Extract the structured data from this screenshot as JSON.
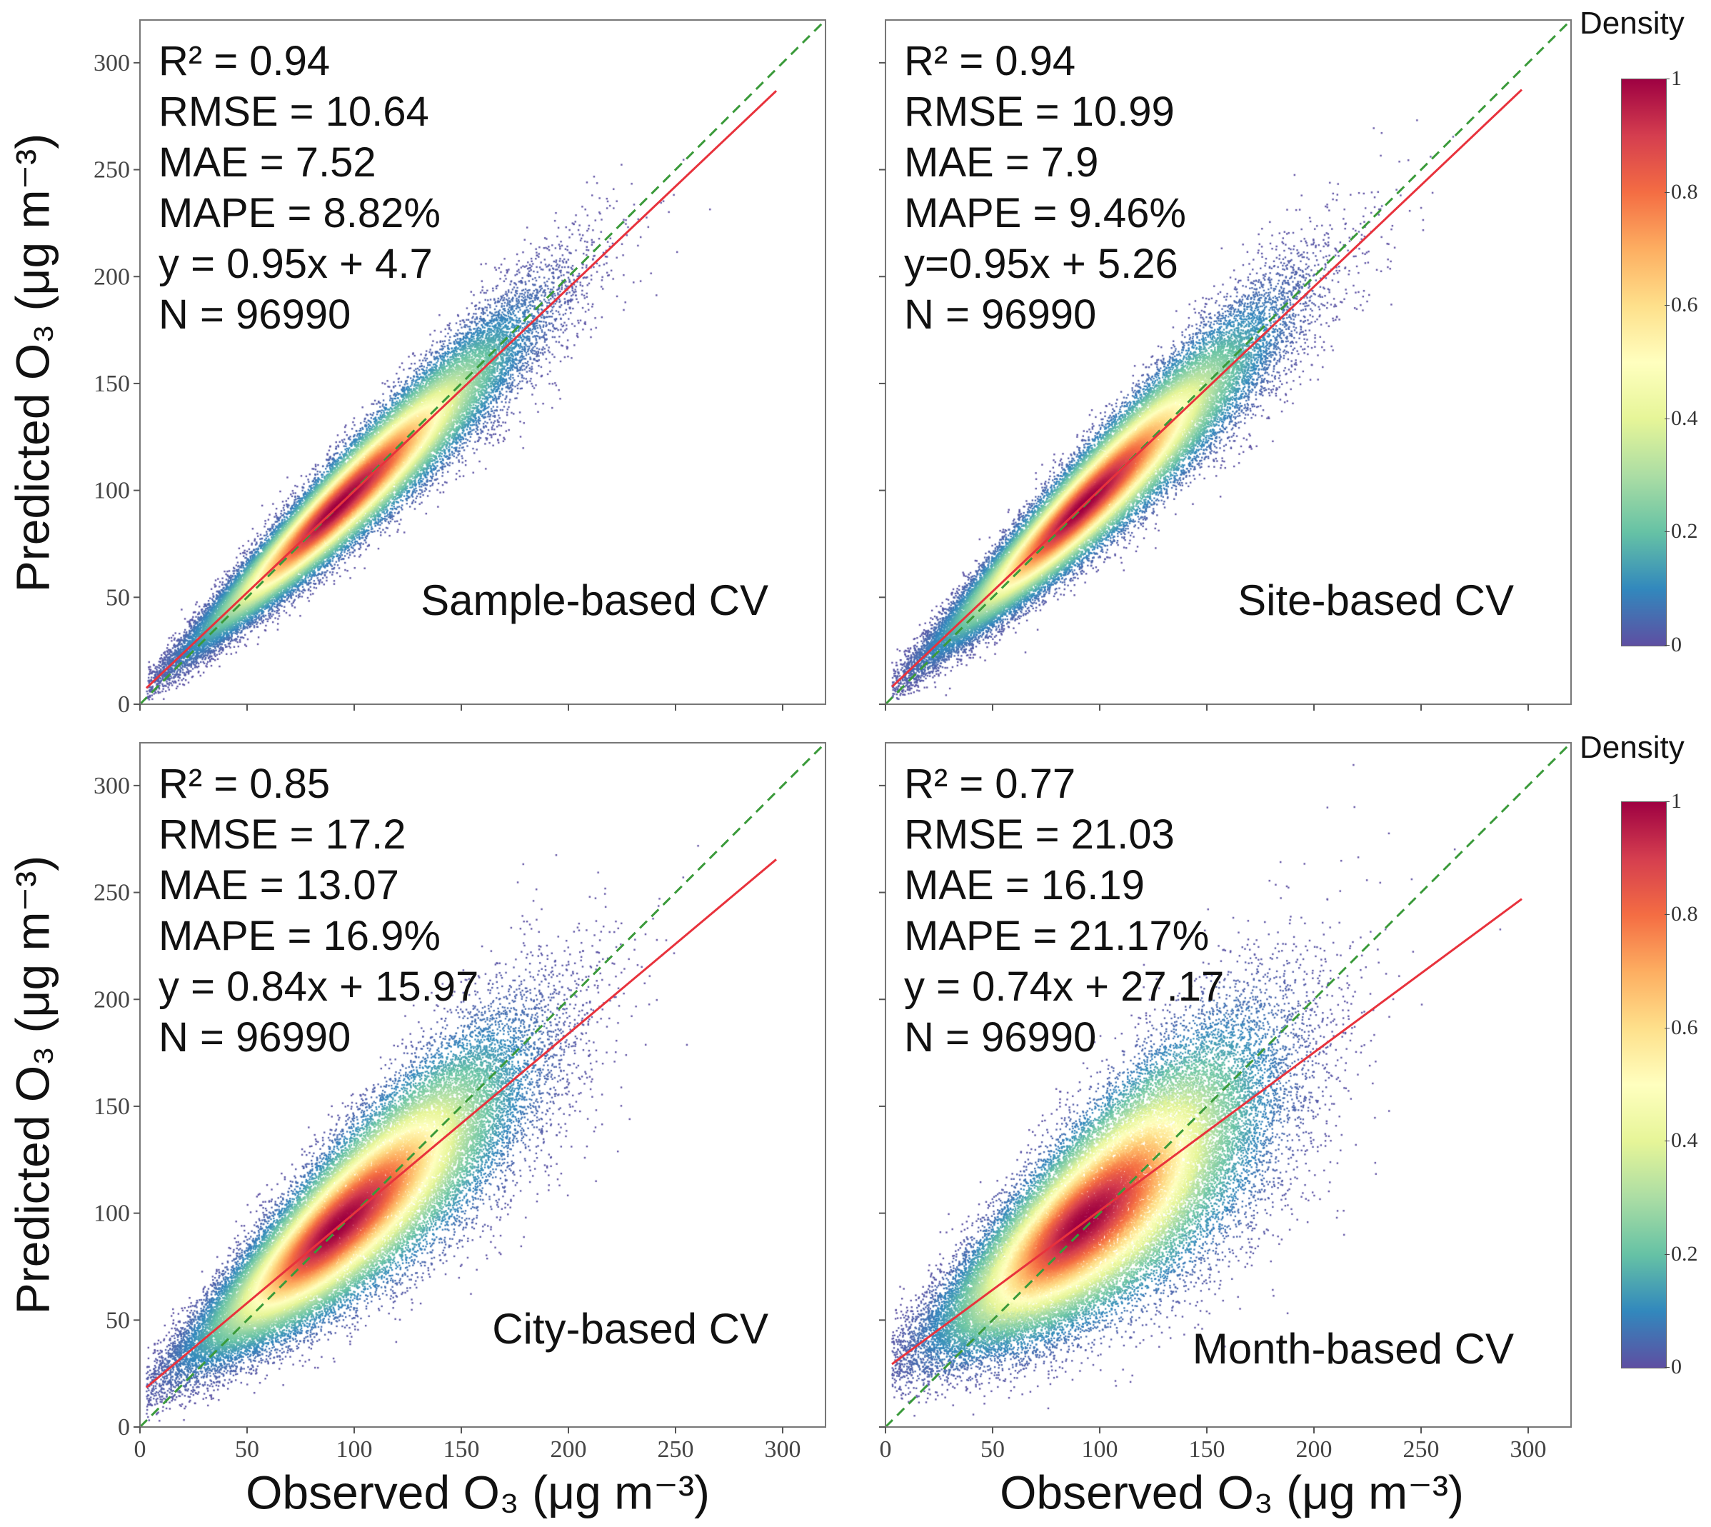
{
  "chart_data": {
    "type": "scatter",
    "xlabel": "Observed O₃  (μg m⁻³)",
    "ylabel": "Predicted O₃  (μg m⁻³)",
    "xlim": [
      0,
      320
    ],
    "ylim": [
      0,
      320
    ],
    "xticks": [
      "0",
      "50",
      "100",
      "150",
      "200",
      "250",
      "300"
    ],
    "yticks": [
      "0",
      "50",
      "100",
      "150",
      "200",
      "250",
      "300"
    ],
    "colorbar": {
      "title": "Density",
      "range": [
        0,
        1
      ],
      "ticks": [
        "0",
        "0.2",
        "0.4",
        "0.6",
        "0.8",
        "1"
      ],
      "colormap": "Spectral_r"
    },
    "colors": {
      "fit_line": "#e8323c",
      "one_to_one": "#3a9a3a"
    },
    "panels": [
      {
        "label": "Sample-based CV",
        "metrics": [
          "R² = 0.94",
          "RMSE = 10.64",
          "MAE = 7.52",
          "MAPE = 8.82%",
          "y = 0.95x + 4.7",
          "N = 96990"
        ],
        "r2": 0.94,
        "rmse": 10.64,
        "mae": 7.52,
        "mape": 8.82,
        "slope": 0.95,
        "intercept": 4.7,
        "n": 96990
      },
      {
        "label": "Site-based CV",
        "metrics": [
          "R² = 0.94",
          "RMSE = 10.99",
          "MAE = 7.9",
          "MAPE = 9.46%",
          "y=0.95x + 5.26",
          "N = 96990"
        ],
        "r2": 0.94,
        "rmse": 10.99,
        "mae": 7.9,
        "mape": 9.46,
        "slope": 0.95,
        "intercept": 5.26,
        "n": 96990
      },
      {
        "label": "City-based CV",
        "metrics": [
          "R² = 0.85",
          "RMSE = 17.2",
          "MAE = 13.07",
          "MAPE = 16.9%",
          "y = 0.84x + 15.97",
          "N = 96990"
        ],
        "r2": 0.85,
        "rmse": 17.2,
        "mae": 13.07,
        "mape": 16.9,
        "slope": 0.84,
        "intercept": 15.97,
        "n": 96990
      },
      {
        "label": "Month-based CV",
        "metrics": [
          "R² = 0.77",
          "RMSE = 21.03",
          "MAE = 16.19",
          "MAPE = 21.17%",
          "y = 0.74x + 27.17",
          "N = 96990"
        ],
        "r2": 0.77,
        "rmse": 21.03,
        "mae": 16.19,
        "mape": 21.17,
        "slope": 0.74,
        "intercept": 27.17,
        "n": 96990
      }
    ]
  }
}
